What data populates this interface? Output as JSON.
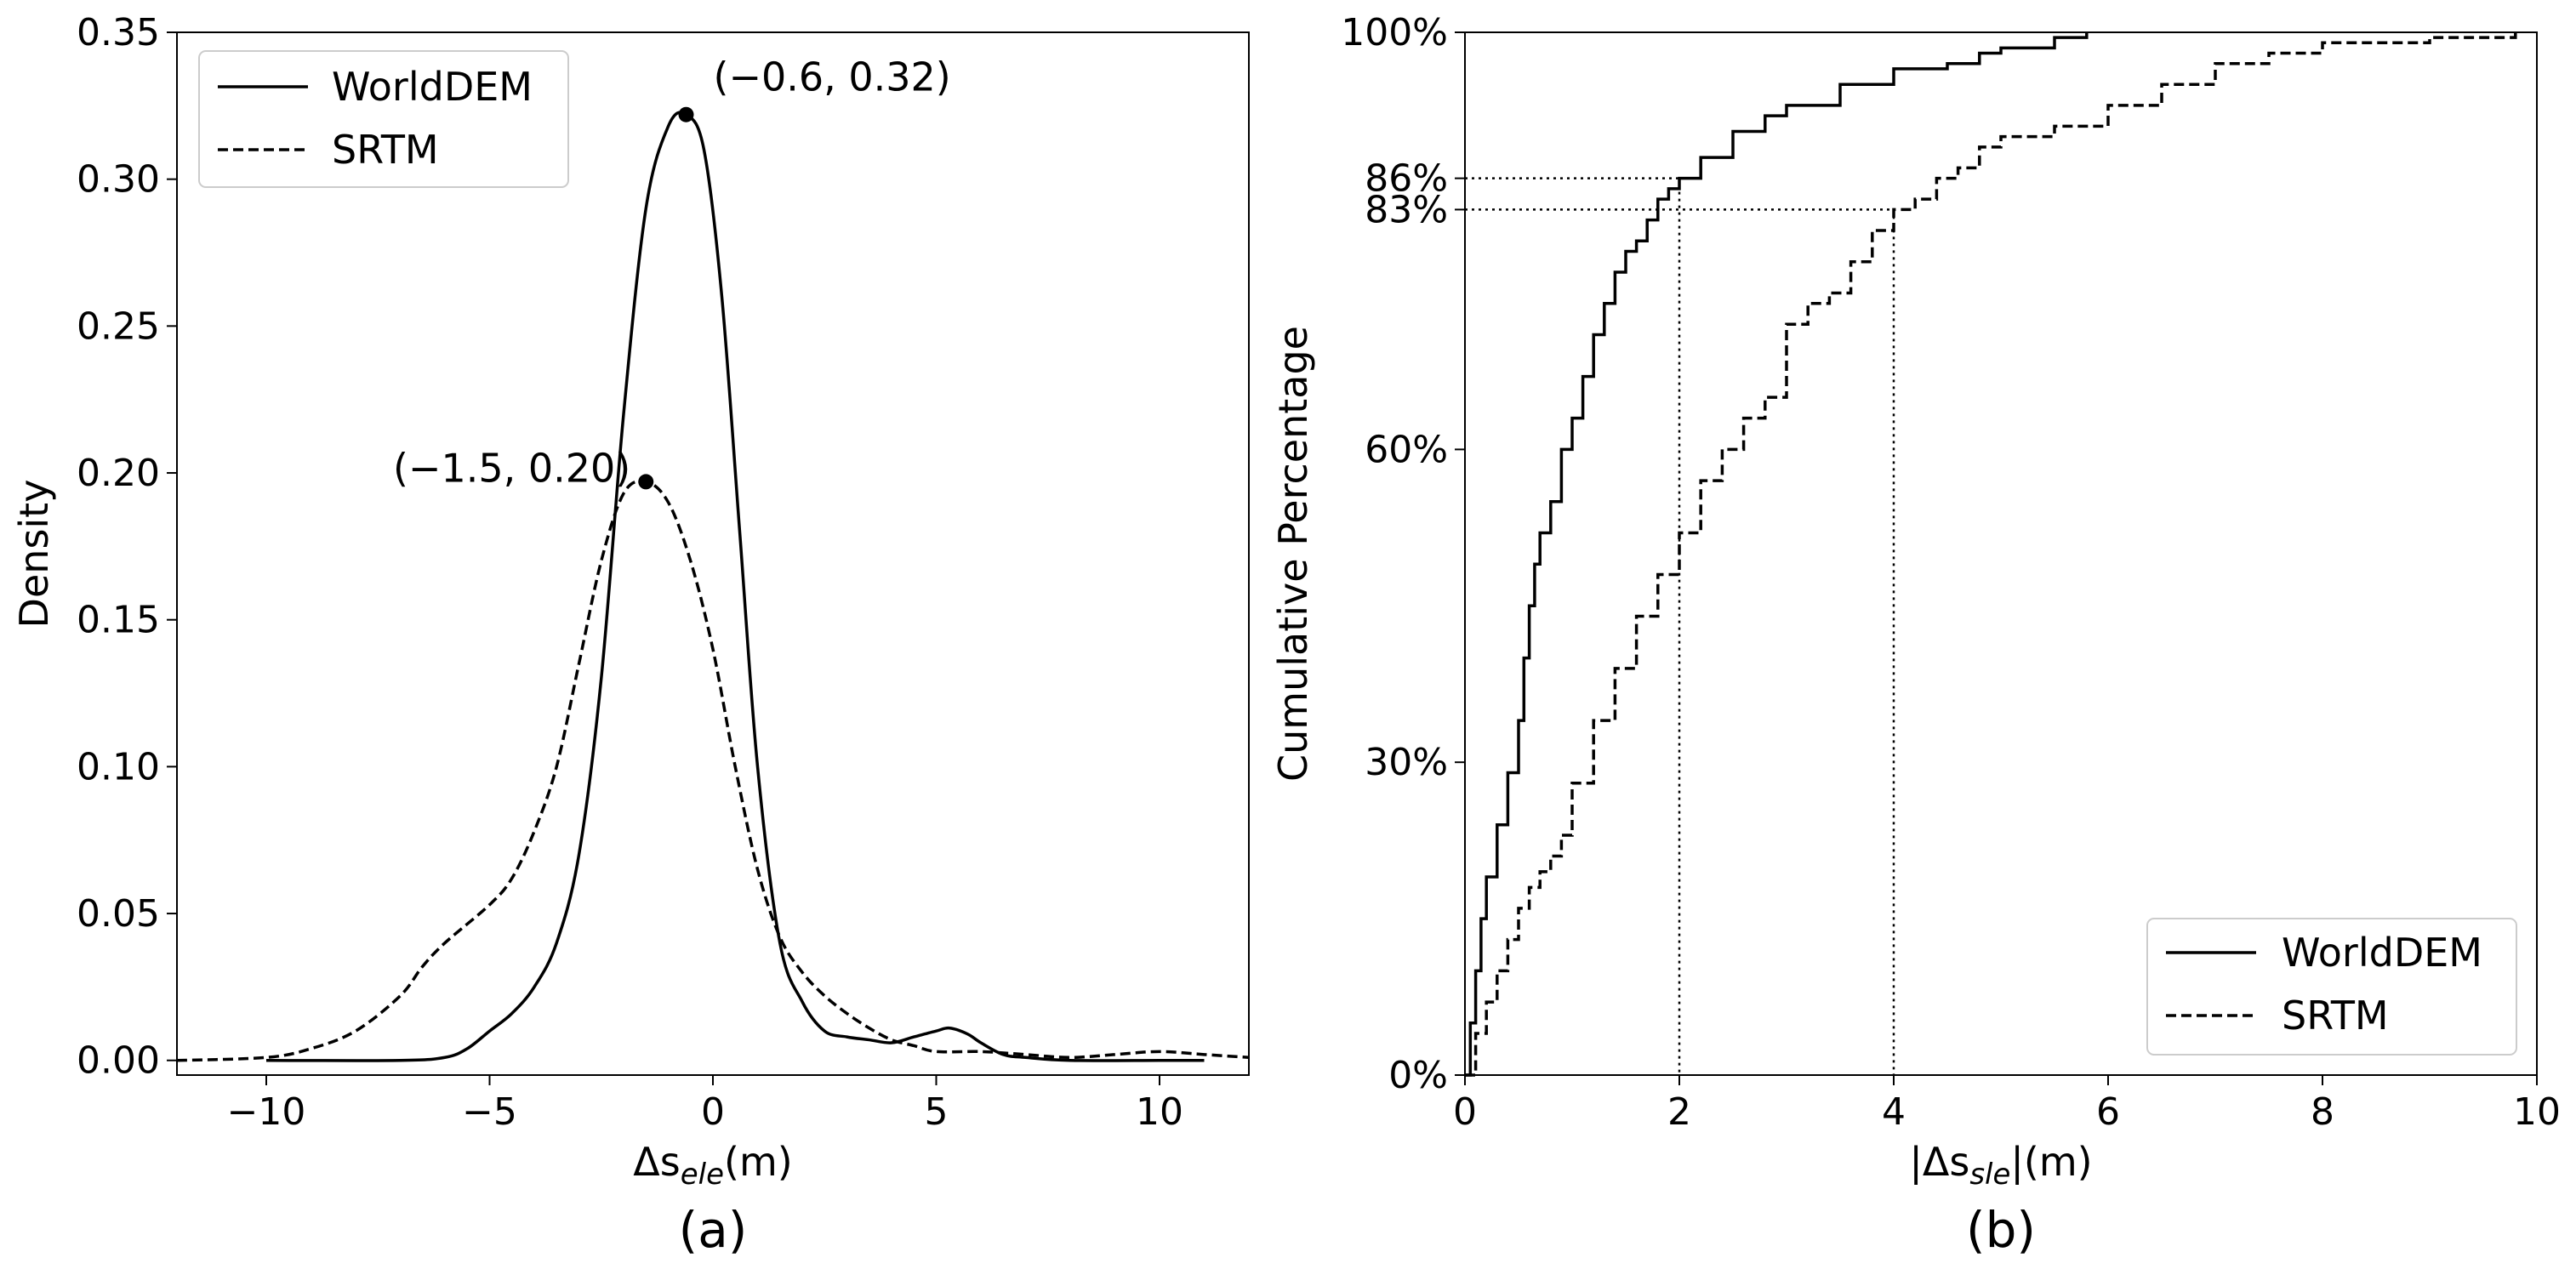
{
  "chart_data": [
    {
      "type": "line",
      "panel": "(a)",
      "caption": "(a)",
      "title": "",
      "xlabel": "Δs",
      "xlabel_sub": "ele",
      "xlabel_unit": "(m)",
      "ylabel": "Density",
      "xlim": [
        -12,
        12
      ],
      "ylim": [
        -0.005,
        0.35
      ],
      "xticks": [
        -10,
        -5,
        0,
        5,
        10
      ],
      "xtick_labels": [
        "−10",
        "−5",
        "0",
        "5",
        "10"
      ],
      "yticks": [
        0.0,
        0.05,
        0.1,
        0.15,
        0.2,
        0.25,
        0.3,
        0.35
      ],
      "ytick_labels": [
        "0.00",
        "0.05",
        "0.10",
        "0.15",
        "0.20",
        "0.25",
        "0.30",
        "0.35"
      ],
      "legend": {
        "position": "upper-left",
        "entries": [
          "WorldDEM",
          "SRTM"
        ]
      },
      "series": [
        {
          "name": "WorldDEM",
          "style": "solid",
          "x": [
            -10,
            -7,
            -6,
            -5.5,
            -5,
            -4.5,
            -4,
            -3.5,
            -3,
            -2.5,
            -2,
            -1.5,
            -1,
            -0.6,
            -0.2,
            0.2,
            0.6,
            1,
            1.5,
            2,
            2.5,
            3,
            3.5,
            4,
            4.5,
            5,
            5.3,
            5.7,
            6,
            6.5,
            7,
            8,
            10,
            11
          ],
          "y": [
            0,
            0,
            0.001,
            0.004,
            0.01,
            0.016,
            0.025,
            0.04,
            0.07,
            0.13,
            0.22,
            0.29,
            0.318,
            0.322,
            0.31,
            0.26,
            0.18,
            0.1,
            0.04,
            0.02,
            0.01,
            0.008,
            0.007,
            0.006,
            0.008,
            0.01,
            0.011,
            0.009,
            0.006,
            0.002,
            0.001,
            0.0,
            0.0,
            0.0
          ]
        },
        {
          "name": "SRTM",
          "style": "dashed",
          "x": [
            -12,
            -10,
            -9,
            -8,
            -7,
            -6.5,
            -6,
            -5,
            -4.5,
            -4,
            -3.5,
            -3,
            -2.5,
            -2,
            -1.5,
            -1,
            -0.5,
            0,
            0.5,
            1,
            1.5,
            2,
            2.5,
            3,
            3.5,
            4,
            4.5,
            5,
            6,
            7,
            8,
            9,
            10,
            11,
            12
          ],
          "y": [
            0,
            0.001,
            0.004,
            0.01,
            0.022,
            0.032,
            0.04,
            0.053,
            0.062,
            0.078,
            0.1,
            0.135,
            0.17,
            0.193,
            0.197,
            0.19,
            0.17,
            0.14,
            0.1,
            0.065,
            0.042,
            0.03,
            0.022,
            0.016,
            0.011,
            0.007,
            0.005,
            0.003,
            0.003,
            0.002,
            0.001,
            0.002,
            0.003,
            0.002,
            0.001
          ]
        }
      ],
      "annotations": [
        {
          "text": "(−0.6, 0.32)",
          "x": -0.6,
          "y": 0.322,
          "series": "WorldDEM"
        },
        {
          "text": "(−1.5, 0.20)",
          "x": -1.5,
          "y": 0.197,
          "series": "SRTM"
        }
      ]
    },
    {
      "type": "line",
      "panel": "(b)",
      "caption": "(b)",
      "title": "",
      "xlabel_prefix": "|Δs",
      "xlabel_sub": "sle",
      "xlabel_suffix": "|(m)",
      "ylabel": "Cumulative Percentage",
      "xlim": [
        0,
        10
      ],
      "ylim": [
        0,
        100
      ],
      "xticks": [
        0,
        2,
        4,
        6,
        8,
        10
      ],
      "xtick_labels": [
        "0",
        "2",
        "4",
        "6",
        "8",
        "10"
      ],
      "yticks": [
        0,
        30,
        60,
        83,
        86,
        100
      ],
      "ytick_labels": [
        "0%",
        "30%",
        "60%",
        "83%",
        "86%",
        "100%"
      ],
      "legend": {
        "position": "lower-right",
        "entries": [
          "WorldDEM",
          "SRTM"
        ]
      },
      "reference_lines": [
        {
          "x": 2,
          "y": 86
        },
        {
          "x": 4,
          "y": 83
        }
      ],
      "series": [
        {
          "name": "WorldDEM",
          "style": "solid",
          "x": [
            0,
            0.05,
            0.1,
            0.15,
            0.2,
            0.3,
            0.4,
            0.5,
            0.55,
            0.6,
            0.65,
            0.7,
            0.8,
            0.9,
            1.0,
            1.1,
            1.2,
            1.3,
            1.4,
            1.5,
            1.6,
            1.7,
            1.8,
            1.9,
            2.0,
            2.2,
            2.5,
            2.8,
            3.0,
            3.5,
            4.0,
            4.5,
            4.8,
            5.0,
            5.5,
            5.8
          ],
          "y": [
            0,
            5,
            10,
            15,
            19,
            24,
            29,
            34,
            40,
            45,
            49,
            52,
            55,
            60,
            63,
            67,
            71,
            74,
            77,
            79,
            80,
            82,
            84,
            85,
            86,
            88,
            90.5,
            92,
            93,
            95,
            96.5,
            97,
            98,
            98.5,
            99.5,
            100
          ]
        },
        {
          "name": "SRTM",
          "style": "dashed",
          "x": [
            0,
            0.1,
            0.2,
            0.3,
            0.4,
            0.5,
            0.6,
            0.7,
            0.8,
            0.9,
            1.0,
            1.2,
            1.4,
            1.6,
            1.8,
            2.0,
            2.2,
            2.4,
            2.6,
            2.8,
            3.0,
            3.2,
            3.4,
            3.6,
            3.8,
            4.0,
            4.2,
            4.4,
            4.6,
            4.8,
            5.0,
            5.5,
            6.0,
            6.5,
            7.0,
            7.5,
            8.0,
            9.0,
            9.8
          ],
          "y": [
            0,
            4,
            7,
            10,
            13,
            16,
            18,
            19.5,
            21,
            23,
            28,
            34,
            39,
            44,
            48,
            52,
            57,
            60,
            63,
            65,
            72,
            74,
            75,
            78,
            81,
            83,
            84,
            86,
            87,
            89,
            90,
            91,
            93,
            95,
            97,
            98,
            99,
            99.5,
            100
          ]
        }
      ]
    }
  ]
}
